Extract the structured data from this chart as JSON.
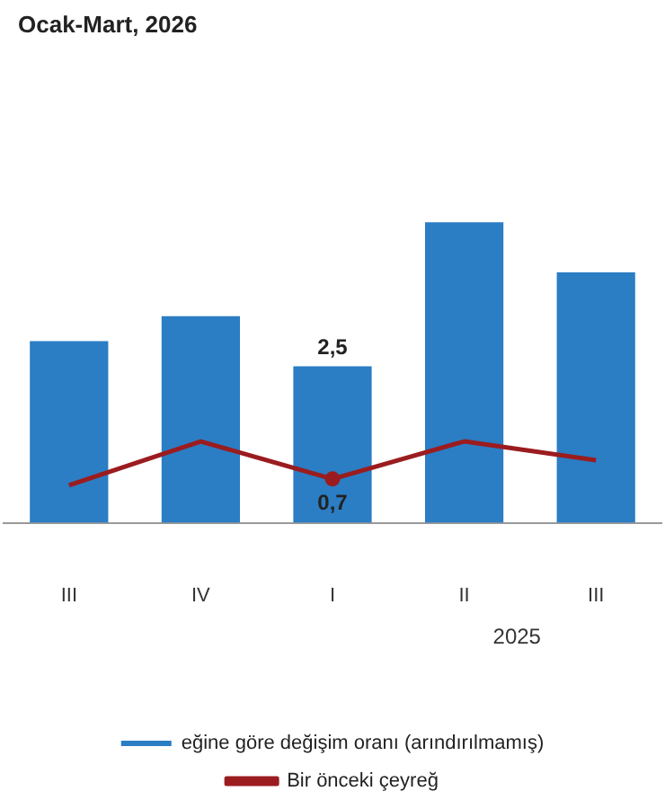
{
  "chart_data": {
    "type": "bar",
    "title": "Ocak-Mart, 2026",
    "categories": [
      "III",
      "IV",
      "I",
      "II",
      "III"
    ],
    "series": [
      {
        "name": "eğine göre değişim oranı (arındırılmamış)",
        "color": "#2b7dc4",
        "values": [
          2.9,
          3.3,
          2.5,
          4.8,
          4.0
        ],
        "value_labels": [
          null,
          null,
          "2,5",
          null,
          null
        ]
      },
      {
        "name": "Bir önceki çeyreğ",
        "type": "line",
        "color": "#9b1c1f",
        "values": [
          0.6,
          1.3,
          0.7,
          1.3,
          1.0
        ],
        "value_labels": [
          null,
          null,
          "0,7",
          null,
          null
        ]
      }
    ],
    "annotations": [
      "2025"
    ],
    "grid": false,
    "legend": "bottom",
    "marker": "none",
    "line_style": "solid"
  }
}
